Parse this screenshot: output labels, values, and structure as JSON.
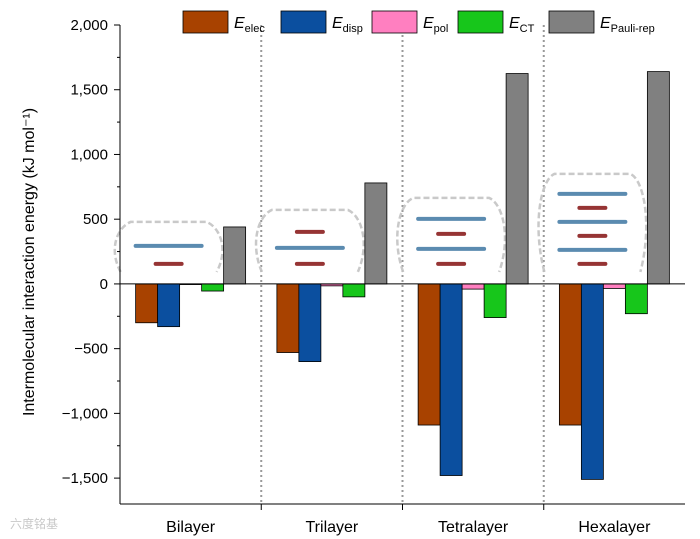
{
  "chart_data": {
    "type": "bar",
    "categories": [
      "Bilayer",
      "Trilayer",
      "Tetralayer",
      "Hexalayer"
    ],
    "series": [
      {
        "name": "E",
        "sub": "elec",
        "color": "#a84200",
        "values": [
          -300,
          -530,
          -1090,
          -1090
        ]
      },
      {
        "name": "E",
        "sub": "disp",
        "color": "#0b4f9f",
        "values": [
          -330,
          -600,
          -1480,
          -1510
        ]
      },
      {
        "name": "E",
        "sub": "pol",
        "color": "#ff7fc0",
        "values": [
          -5,
          -15,
          -40,
          -35
        ]
      },
      {
        "name": "E",
        "sub": "CT",
        "color": "#17c61b",
        "values": [
          -55,
          -100,
          -260,
          -230
        ]
      },
      {
        "name": "E",
        "sub": "Pauli-rep",
        "color": "#808080",
        "values": [
          440,
          780,
          1625,
          1640
        ]
      }
    ],
    "ylabel": "Intermolecular interaction energy (kJ mol⁻¹)",
    "ylim": [
      -1700,
      2000
    ],
    "yticks": [
      -1500,
      -1000,
      -500,
      0,
      500,
      1000,
      1500,
      2000
    ],
    "ytick_labels": [
      "−1,500",
      "−1,000",
      "−500",
      "0",
      "500",
      "1,000",
      "1,500",
      "2,000"
    ],
    "legend_placement": "top-right",
    "category_separators": "dotted"
  },
  "watermark": "六度铭基"
}
